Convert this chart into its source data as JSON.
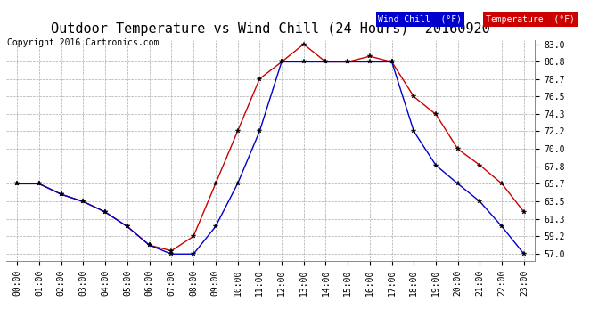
{
  "title": "Outdoor Temperature vs Wind Chill (24 Hours)  20160920",
  "copyright": "Copyright 2016 Cartronics.com",
  "x_labels": [
    "00:00",
    "01:00",
    "02:00",
    "03:00",
    "04:00",
    "05:00",
    "06:00",
    "07:00",
    "08:00",
    "09:00",
    "10:00",
    "11:00",
    "12:00",
    "13:00",
    "14:00",
    "15:00",
    "16:00",
    "17:00",
    "18:00",
    "19:00",
    "20:00",
    "21:00",
    "22:00",
    "23:00"
  ],
  "temperature": [
    65.7,
    65.7,
    64.4,
    63.5,
    62.2,
    60.4,
    58.1,
    57.4,
    59.2,
    65.7,
    72.2,
    78.7,
    80.8,
    83.0,
    80.8,
    80.8,
    81.5,
    80.8,
    76.5,
    74.3,
    70.0,
    68.0,
    65.7,
    62.2
  ],
  "wind_chill": [
    65.7,
    65.7,
    64.4,
    63.5,
    62.2,
    60.4,
    58.1,
    57.0,
    57.0,
    60.4,
    65.7,
    72.2,
    80.8,
    80.8,
    80.8,
    80.8,
    80.8,
    80.8,
    72.2,
    68.0,
    65.7,
    63.5,
    60.4,
    57.0
  ],
  "ylim_min": 57.0,
  "ylim_max": 83.0,
  "yticks": [
    57.0,
    59.2,
    61.3,
    63.5,
    65.7,
    67.8,
    70.0,
    72.2,
    74.3,
    76.5,
    78.7,
    80.8,
    83.0
  ],
  "temp_color": "#cc0000",
  "wind_color": "#0000cc",
  "bg_color": "#ffffff",
  "grid_color": "#aaaaaa",
  "title_fontsize": 11,
  "tick_fontsize": 7,
  "copyright_fontsize": 7
}
